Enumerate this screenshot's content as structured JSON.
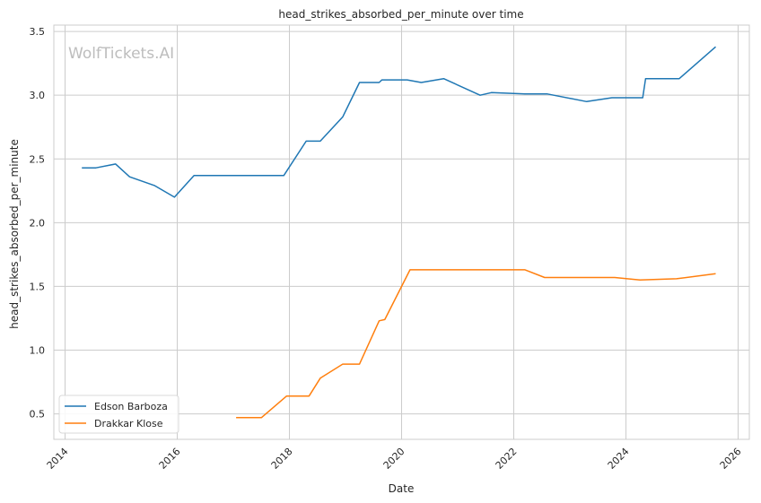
{
  "chart_data": {
    "type": "line",
    "title": "head_strikes_absorbed_per_minute over time",
    "xlabel": "Date",
    "ylabel": "head_strikes_absorbed_per_minute",
    "watermark": "WolfTickets.AI",
    "xlim": [
      2013.8,
      2026.2
    ],
    "ylim": [
      0.3,
      3.55
    ],
    "xticks": [
      2014,
      2016,
      2018,
      2020,
      2022,
      2024,
      2026
    ],
    "xtick_labels": [
      "2014",
      "2016",
      "2018",
      "2020",
      "2022",
      "2024",
      "2026"
    ],
    "yticks": [
      0.5,
      1.0,
      1.5,
      2.0,
      2.5,
      3.0,
      3.5
    ],
    "ytick_labels": [
      "0.5",
      "1.0",
      "1.5",
      "2.0",
      "2.5",
      "3.0",
      "3.5"
    ],
    "grid": true,
    "legend_position": "lower-left",
    "series": [
      {
        "name": "Edson Barboza",
        "color": "#1f77b4",
        "x": [
          2014.3,
          2014.55,
          2014.9,
          2015.15,
          2015.6,
          2015.95,
          2016.3,
          2016.55,
          2016.8,
          2017.05,
          2017.3,
          2017.6,
          2017.9,
          2018.3,
          2018.55,
          2018.95,
          2019.25,
          2019.6,
          2019.65,
          2020.1,
          2020.35,
          2020.75,
          2021.4,
          2021.6,
          2022.2,
          2022.6,
          2023.3,
          2023.75,
          2024.3,
          2024.35,
          2024.95,
          2025.6
        ],
        "y": [
          2.43,
          2.43,
          2.46,
          2.36,
          2.29,
          2.2,
          2.37,
          2.37,
          2.37,
          2.37,
          2.37,
          2.37,
          2.37,
          2.64,
          2.64,
          2.83,
          3.1,
          3.1,
          3.12,
          3.12,
          3.1,
          3.13,
          3.0,
          3.02,
          3.01,
          3.01,
          2.95,
          2.98,
          2.98,
          3.13,
          3.13,
          3.38
        ]
      },
      {
        "name": "Drakkar Klose",
        "color": "#ff7f0e",
        "x": [
          2017.05,
          2017.5,
          2017.95,
          2018.35,
          2018.55,
          2018.95,
          2019.25,
          2019.6,
          2019.7,
          2020.15,
          2020.5,
          2021.0,
          2021.5,
          2022.2,
          2022.55,
          2023.0,
          2023.5,
          2023.8,
          2024.25,
          2024.9,
          2025.6
        ],
        "y": [
          0.47,
          0.47,
          0.64,
          0.64,
          0.78,
          0.89,
          0.89,
          1.23,
          1.24,
          1.63,
          1.63,
          1.63,
          1.63,
          1.63,
          1.57,
          1.57,
          1.57,
          1.57,
          1.55,
          1.56,
          1.6
        ]
      }
    ]
  }
}
